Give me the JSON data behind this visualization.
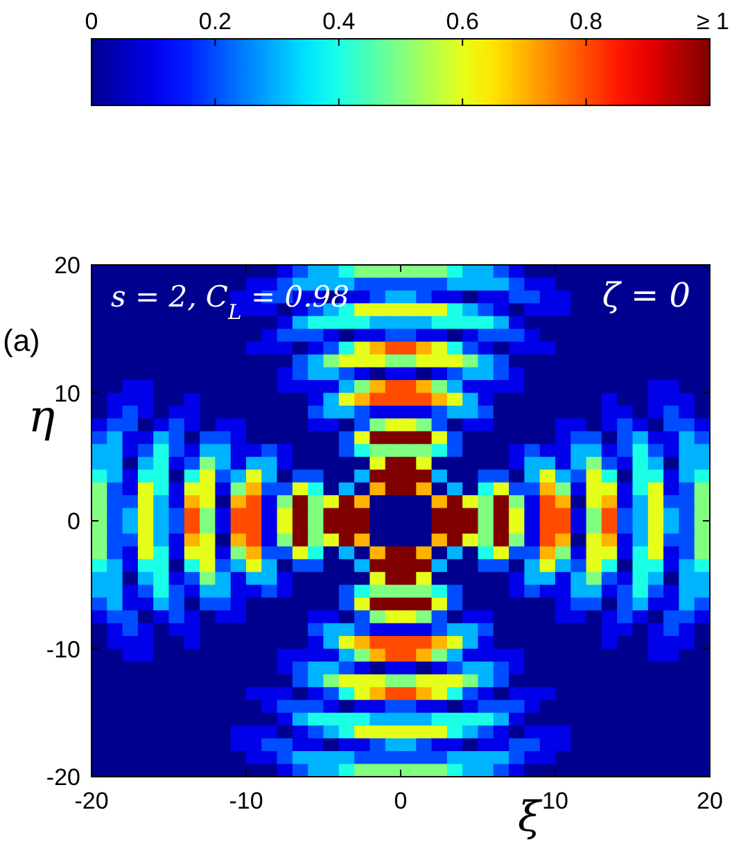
{
  "chart_data": {
    "type": "heatmap",
    "xlabel": "ξ",
    "ylabel": "η",
    "annotations": [
      "s = 2, C$_{L}$ = 0.98",
      "ζ = 0",
      "(a)"
    ],
    "xlim": [
      -20,
      20
    ],
    "ylim": [
      -20,
      20
    ],
    "xticks": [
      -20,
      -10,
      0,
      10,
      20
    ],
    "yticks": [
      -20,
      -10,
      0,
      10,
      20
    ],
    "clim": [
      0,
      1
    ],
    "cticks": [
      0,
      0.2,
      0.4,
      0.6,
      0.8,
      {
        "value": 1,
        "label": "≥ 1"
      }
    ],
    "cells": [
      [
        0,
        0,
        0,
        0,
        0,
        0,
        0,
        0,
        0,
        0,
        0,
        0,
        0.1,
        0.2,
        0.3,
        0.3,
        0.4,
        0.5,
        0.5,
        0.5,
        0.5,
        0.5,
        0.5,
        0.4,
        0.3,
        0.3,
        0.2,
        0.1,
        0,
        0,
        0,
        0,
        0,
        0,
        0,
        0,
        0,
        0,
        0,
        0
      ],
      [
        0,
        0,
        0,
        0,
        0,
        0,
        0,
        0,
        0,
        0,
        0.1,
        0.1,
        0.2,
        0.3,
        0.3,
        0.3,
        0.3,
        0.2,
        0.2,
        0.2,
        0.2,
        0.2,
        0.2,
        0.3,
        0.3,
        0.3,
        0.3,
        0.2,
        0.1,
        0.1,
        0,
        0,
        0,
        0,
        0,
        0,
        0,
        0,
        0,
        0
      ],
      [
        0,
        0,
        0,
        0,
        0,
        0,
        0,
        0,
        0,
        0.1,
        0.1,
        0.2,
        0.2,
        0.1,
        0.1,
        0,
        0.1,
        0.1,
        0.2,
        0.3,
        0.3,
        0.2,
        0.1,
        0.1,
        0,
        0.1,
        0.1,
        0.2,
        0.2,
        0.1,
        0.1,
        0,
        0,
        0,
        0,
        0,
        0,
        0,
        0,
        0
      ],
      [
        0,
        0,
        0,
        0,
        0,
        0,
        0,
        0,
        0,
        0.1,
        0.1,
        0.1,
        0,
        0.1,
        0.2,
        0.3,
        0.4,
        0.6,
        0.6,
        0.6,
        0.6,
        0.6,
        0.6,
        0.4,
        0.3,
        0.2,
        0.1,
        0,
        0.1,
        0.1,
        0.1,
        0,
        0,
        0,
        0,
        0,
        0,
        0,
        0,
        0
      ],
      [
        0,
        0,
        0,
        0,
        0,
        0,
        0,
        0,
        0,
        0,
        0,
        0,
        0.1,
        0.3,
        0.4,
        0.4,
        0.4,
        0.4,
        0.3,
        0.3,
        0.3,
        0.3,
        0.4,
        0.4,
        0.4,
        0.4,
        0.3,
        0.1,
        0,
        0,
        0,
        0,
        0,
        0,
        0,
        0,
        0,
        0,
        0,
        0
      ],
      [
        0,
        0,
        0,
        0,
        0,
        0,
        0,
        0,
        0,
        0,
        0,
        0.1,
        0.2,
        0.2,
        0.2,
        0.1,
        0,
        0.1,
        0.1,
        0.2,
        0.2,
        0.1,
        0.1,
        0,
        0.1,
        0.2,
        0.2,
        0.2,
        0.1,
        0,
        0,
        0,
        0,
        0,
        0,
        0,
        0,
        0,
        0,
        0
      ],
      [
        0,
        0,
        0,
        0,
        0,
        0,
        0,
        0,
        0,
        0,
        0.1,
        0.1,
        0.1,
        0,
        0.1,
        0.2,
        0.4,
        0.6,
        0.7,
        0.8,
        0.8,
        0.7,
        0.6,
        0.4,
        0.2,
        0.1,
        0,
        0.1,
        0.1,
        0.1,
        0,
        0,
        0,
        0,
        0,
        0,
        0,
        0,
        0,
        0
      ],
      [
        0,
        0,
        0,
        0,
        0,
        0,
        0,
        0,
        0,
        0,
        0,
        0,
        0,
        0.2,
        0.3,
        0.5,
        0.6,
        0.6,
        0.6,
        0.5,
        0.5,
        0.6,
        0.6,
        0.6,
        0.5,
        0.3,
        0.2,
        0,
        0,
        0,
        0,
        0,
        0,
        0,
        0,
        0,
        0,
        0,
        0,
        0
      ],
      [
        0,
        0,
        0,
        0,
        0,
        0,
        0,
        0,
        0,
        0,
        0,
        0,
        0.1,
        0.2,
        0.3,
        0.3,
        0.2,
        0.1,
        0,
        0.1,
        0.1,
        0,
        0.1,
        0.2,
        0.3,
        0.3,
        0.2,
        0.1,
        0,
        0,
        0,
        0,
        0,
        0,
        0,
        0,
        0,
        0,
        0,
        0
      ],
      [
        0,
        0,
        0.1,
        0.1,
        0,
        0,
        0,
        0,
        0,
        0,
        0,
        0,
        0.1,
        0.1,
        0.1,
        0.1,
        0.3,
        0.5,
        0.7,
        0.8,
        0.8,
        0.7,
        0.5,
        0.3,
        0.1,
        0.1,
        0.1,
        0.1,
        0,
        0,
        0,
        0,
        0,
        0,
        0,
        0,
        0.1,
        0.1,
        0,
        0
      ],
      [
        0,
        0.1,
        0.1,
        0.1,
        0,
        0,
        0.1,
        0,
        0,
        0,
        0,
        0,
        0,
        0,
        0.1,
        0.3,
        0.6,
        0.7,
        0.8,
        0.8,
        0.8,
        0.8,
        0.7,
        0.6,
        0.3,
        0.1,
        0,
        0,
        0,
        0,
        0,
        0,
        0,
        0.1,
        0,
        0,
        0.1,
        0.1,
        0.1,
        0
      ],
      [
        0,
        0.1,
        0.2,
        0.1,
        0,
        0.1,
        0.1,
        0,
        0,
        0,
        0,
        0,
        0,
        0,
        0.2,
        0.3,
        0.3,
        0.2,
        0.1,
        0.1,
        0.1,
        0.1,
        0.2,
        0.3,
        0.3,
        0.2,
        0,
        0,
        0,
        0,
        0,
        0,
        0,
        0.1,
        0.1,
        0,
        0.1,
        0.2,
        0.1,
        0
      ],
      [
        0.1,
        0.2,
        0.2,
        0,
        0.1,
        0.2,
        0.1,
        0,
        0.1,
        0.1,
        0,
        0,
        0,
        0,
        0.1,
        0.1,
        0,
        0.2,
        0.5,
        0.6,
        0.6,
        0.5,
        0.2,
        0,
        0.1,
        0.1,
        0,
        0,
        0,
        0,
        0.1,
        0.1,
        0,
        0.1,
        0.2,
        0.1,
        0,
        0.2,
        0.2,
        0.1
      ],
      [
        0.2,
        0.3,
        0.1,
        0.1,
        0.3,
        0.2,
        0,
        0.2,
        0.2,
        0.1,
        0,
        0,
        0,
        0,
        0,
        0,
        0.2,
        0.6,
        1,
        1,
        1,
        1,
        0.6,
        0.2,
        0,
        0,
        0,
        0,
        0,
        0,
        0.1,
        0.2,
        0.2,
        0,
        0.2,
        0.3,
        0.1,
        0.1,
        0.3,
        0.2
      ],
      [
        0.3,
        0.3,
        0.1,
        0.2,
        0.4,
        0.2,
        0.1,
        0.3,
        0.3,
        0.1,
        0.1,
        0.2,
        0.1,
        0,
        0,
        0,
        0.2,
        0.4,
        0.5,
        0.5,
        0.5,
        0.5,
        0.4,
        0.2,
        0,
        0,
        0,
        0.1,
        0.2,
        0.1,
        0.1,
        0.3,
        0.3,
        0.1,
        0.2,
        0.4,
        0.2,
        0.1,
        0.3,
        0.3
      ],
      [
        0.3,
        0.3,
        0,
        0.3,
        0.4,
        0.1,
        0.2,
        0.5,
        0.3,
        0.1,
        0.3,
        0.3,
        0.1,
        0,
        0,
        0,
        0,
        0,
        0.6,
        1,
        1,
        0.6,
        0,
        0,
        0,
        0,
        0,
        0.1,
        0.3,
        0.3,
        0.1,
        0.3,
        0.5,
        0.2,
        0.1,
        0.4,
        0.3,
        0,
        0.3,
        0.3
      ],
      [
        0.4,
        0.3,
        0.1,
        0.4,
        0.4,
        0,
        0.4,
        0.6,
        0.2,
        0.3,
        0.6,
        0.3,
        0,
        0.2,
        0.2,
        0,
        0,
        0.3,
        1,
        1,
        1,
        1,
        0.3,
        0,
        0,
        0.2,
        0.2,
        0,
        0.3,
        0.6,
        0.3,
        0.2,
        0.6,
        0.4,
        0,
        0.4,
        0.4,
        0.1,
        0.3,
        0.4
      ],
      [
        0.5,
        0.2,
        0.1,
        0.6,
        0.4,
        0.1,
        0.6,
        0.6,
        0.1,
        0.5,
        0.7,
        0.2,
        0.2,
        0.6,
        0.4,
        0,
        0.3,
        0,
        0.7,
        1,
        1,
        0.7,
        0,
        0.3,
        0,
        0.4,
        0.6,
        0.2,
        0.2,
        0.7,
        0.5,
        0.1,
        0.6,
        0.6,
        0.1,
        0.4,
        0.6,
        0.1,
        0.2,
        0.5
      ],
      [
        0.5,
        0.2,
        0.2,
        0.6,
        0.3,
        0.1,
        0.7,
        0.6,
        0,
        0.7,
        0.8,
        0.1,
        0.5,
        1,
        0.5,
        0.6,
        1,
        0.7,
        0,
        0,
        0,
        0,
        0.7,
        1,
        0.6,
        0.5,
        1,
        0.5,
        0.1,
        0.8,
        0.7,
        0,
        0.6,
        0.7,
        0.1,
        0.3,
        0.6,
        0.2,
        0.2,
        0.5
      ],
      [
        0.5,
        0.2,
        0.3,
        0.6,
        0.3,
        0.2,
        0.8,
        0.5,
        0.1,
        0.8,
        0.8,
        0.1,
        0.6,
        1,
        0.5,
        1,
        1,
        1,
        0,
        0,
        0,
        0,
        1,
        1,
        1,
        0.5,
        1,
        0.6,
        0.1,
        0.8,
        0.8,
        0.1,
        0.5,
        0.8,
        0.2,
        0.3,
        0.6,
        0.3,
        0.2,
        0.5
      ],
      [
        0.5,
        0.2,
        0.3,
        0.6,
        0.3,
        0.2,
        0.8,
        0.5,
        0.1,
        0.8,
        0.8,
        0.1,
        0.6,
        1,
        0.5,
        1,
        1,
        1,
        0,
        0,
        0,
        0,
        1,
        1,
        1,
        0.5,
        1,
        0.6,
        0.1,
        0.8,
        0.8,
        0.1,
        0.5,
        0.8,
        0.2,
        0.3,
        0.6,
        0.3,
        0.2,
        0.5
      ],
      [
        0.5,
        0.2,
        0.2,
        0.6,
        0.3,
        0.1,
        0.7,
        0.6,
        0,
        0.7,
        0.8,
        0.1,
        0.5,
        1,
        0.5,
        0.6,
        1,
        0.7,
        0,
        0,
        0,
        0,
        0.7,
        1,
        0.6,
        0.5,
        1,
        0.5,
        0.1,
        0.8,
        0.7,
        0,
        0.6,
        0.7,
        0.1,
        0.3,
        0.6,
        0.2,
        0.2,
        0.5
      ],
      [
        0.5,
        0.2,
        0.1,
        0.6,
        0.4,
        0.1,
        0.6,
        0.6,
        0.1,
        0.5,
        0.7,
        0.2,
        0.2,
        0.6,
        0.4,
        0,
        0.3,
        0,
        0.7,
        1,
        1,
        0.7,
        0,
        0.3,
        0,
        0.4,
        0.6,
        0.2,
        0.2,
        0.7,
        0.5,
        0.1,
        0.6,
        0.6,
        0.1,
        0.4,
        0.6,
        0.1,
        0.2,
        0.5
      ],
      [
        0.4,
        0.3,
        0.1,
        0.4,
        0.4,
        0,
        0.4,
        0.6,
        0.2,
        0.3,
        0.6,
        0.3,
        0,
        0.2,
        0.2,
        0,
        0,
        0.3,
        1,
        1,
        1,
        1,
        0.3,
        0,
        0,
        0.2,
        0.2,
        0,
        0.3,
        0.6,
        0.3,
        0.2,
        0.6,
        0.4,
        0,
        0.4,
        0.4,
        0.1,
        0.3,
        0.4
      ],
      [
        0.3,
        0.3,
        0,
        0.3,
        0.4,
        0.1,
        0.2,
        0.5,
        0.3,
        0.1,
        0.3,
        0.3,
        0.1,
        0,
        0,
        0,
        0,
        0,
        0.6,
        1,
        1,
        0.6,
        0,
        0,
        0,
        0,
        0,
        0.1,
        0.3,
        0.3,
        0.1,
        0.3,
        0.5,
        0.2,
        0.1,
        0.4,
        0.3,
        0,
        0.3,
        0.3
      ],
      [
        0.3,
        0.3,
        0.1,
        0.2,
        0.4,
        0.2,
        0.1,
        0.3,
        0.3,
        0.1,
        0.1,
        0.2,
        0.1,
        0,
        0,
        0,
        0.2,
        0.4,
        0.5,
        0.5,
        0.5,
        0.5,
        0.4,
        0.2,
        0,
        0,
        0,
        0.1,
        0.2,
        0.1,
        0.1,
        0.3,
        0.3,
        0.1,
        0.2,
        0.4,
        0.2,
        0.1,
        0.3,
        0.3
      ],
      [
        0.2,
        0.3,
        0.1,
        0.1,
        0.3,
        0.2,
        0,
        0.2,
        0.2,
        0.1,
        0,
        0,
        0,
        0,
        0,
        0,
        0.2,
        0.6,
        1,
        1,
        1,
        1,
        0.6,
        0.2,
        0,
        0,
        0,
        0,
        0,
        0,
        0.1,
        0.2,
        0.2,
        0,
        0.2,
        0.3,
        0.1,
        0.1,
        0.3,
        0.2
      ],
      [
        0.1,
        0.2,
        0.2,
        0,
        0.1,
        0.2,
        0.1,
        0,
        0.1,
        0.1,
        0,
        0,
        0,
        0,
        0.1,
        0.1,
        0,
        0.2,
        0.5,
        0.6,
        0.6,
        0.5,
        0.2,
        0,
        0.1,
        0.1,
        0,
        0,
        0,
        0,
        0.1,
        0.1,
        0,
        0.1,
        0.2,
        0.1,
        0,
        0.2,
        0.2,
        0.1
      ],
      [
        0,
        0.1,
        0.2,
        0.1,
        0,
        0.1,
        0.1,
        0,
        0,
        0,
        0,
        0,
        0,
        0,
        0.2,
        0.3,
        0.3,
        0.2,
        0.1,
        0.1,
        0.1,
        0.1,
        0.2,
        0.3,
        0.3,
        0.2,
        0,
        0,
        0,
        0,
        0,
        0,
        0,
        0.1,
        0.1,
        0,
        0.1,
        0.2,
        0.1,
        0
      ],
      [
        0,
        0.1,
        0.1,
        0.1,
        0,
        0,
        0.1,
        0,
        0,
        0,
        0,
        0,
        0,
        0,
        0.1,
        0.3,
        0.6,
        0.7,
        0.8,
        0.8,
        0.8,
        0.8,
        0.7,
        0.6,
        0.3,
        0.1,
        0,
        0,
        0,
        0,
        0,
        0,
        0,
        0.1,
        0,
        0,
        0.1,
        0.1,
        0.1,
        0
      ],
      [
        0,
        0,
        0.1,
        0.1,
        0,
        0,
        0,
        0,
        0,
        0,
        0,
        0,
        0.1,
        0.1,
        0.1,
        0.1,
        0.3,
        0.5,
        0.7,
        0.8,
        0.8,
        0.7,
        0.5,
        0.3,
        0.1,
        0.1,
        0.1,
        0.1,
        0,
        0,
        0,
        0,
        0,
        0,
        0,
        0,
        0.1,
        0.1,
        0,
        0
      ],
      [
        0,
        0,
        0,
        0,
        0,
        0,
        0,
        0,
        0,
        0,
        0,
        0,
        0.1,
        0.2,
        0.3,
        0.3,
        0.2,
        0.1,
        0,
        0.1,
        0.1,
        0,
        0.1,
        0.2,
        0.3,
        0.3,
        0.2,
        0.1,
        0,
        0,
        0,
        0,
        0,
        0,
        0,
        0,
        0,
        0,
        0,
        0
      ],
      [
        0,
        0,
        0,
        0,
        0,
        0,
        0,
        0,
        0,
        0,
        0,
        0,
        0,
        0.2,
        0.3,
        0.5,
        0.6,
        0.6,
        0.6,
        0.5,
        0.5,
        0.6,
        0.6,
        0.6,
        0.5,
        0.3,
        0.2,
        0,
        0,
        0,
        0,
        0,
        0,
        0,
        0,
        0,
        0,
        0,
        0,
        0
      ],
      [
        0,
        0,
        0,
        0,
        0,
        0,
        0,
        0,
        0,
        0,
        0.1,
        0.1,
        0.1,
        0,
        0.1,
        0.2,
        0.4,
        0.6,
        0.7,
        0.8,
        0.8,
        0.7,
        0.6,
        0.4,
        0.2,
        0.1,
        0,
        0.1,
        0.1,
        0.1,
        0,
        0,
        0,
        0,
        0,
        0,
        0,
        0,
        0,
        0
      ],
      [
        0,
        0,
        0,
        0,
        0,
        0,
        0,
        0,
        0,
        0,
        0,
        0.1,
        0.2,
        0.2,
        0.2,
        0.1,
        0,
        0.1,
        0.1,
        0.2,
        0.2,
        0.1,
        0.1,
        0,
        0.1,
        0.2,
        0.2,
        0.2,
        0.1,
        0,
        0,
        0,
        0,
        0,
        0,
        0,
        0,
        0,
        0,
        0
      ],
      [
        0,
        0,
        0,
        0,
        0,
        0,
        0,
        0,
        0,
        0,
        0,
        0,
        0.1,
        0.3,
        0.4,
        0.4,
        0.4,
        0.4,
        0.3,
        0.3,
        0.3,
        0.3,
        0.4,
        0.4,
        0.4,
        0.4,
        0.3,
        0.1,
        0,
        0,
        0,
        0,
        0,
        0,
        0,
        0,
        0,
        0,
        0,
        0
      ],
      [
        0,
        0,
        0,
        0,
        0,
        0,
        0,
        0,
        0,
        0.1,
        0.1,
        0.1,
        0,
        0.1,
        0.2,
        0.3,
        0.4,
        0.6,
        0.6,
        0.6,
        0.6,
        0.6,
        0.6,
        0.4,
        0.3,
        0.2,
        0.1,
        0,
        0.1,
        0.1,
        0.1,
        0,
        0,
        0,
        0,
        0,
        0,
        0,
        0,
        0
      ],
      [
        0,
        0,
        0,
        0,
        0,
        0,
        0,
        0,
        0,
        0.1,
        0.1,
        0.2,
        0.2,
        0.1,
        0.1,
        0,
        0.1,
        0.1,
        0.2,
        0.3,
        0.3,
        0.2,
        0.1,
        0.1,
        0,
        0.1,
        0.1,
        0.2,
        0.2,
        0.1,
        0.1,
        0,
        0,
        0,
        0,
        0,
        0,
        0,
        0,
        0
      ],
      [
        0,
        0,
        0,
        0,
        0,
        0,
        0,
        0,
        0,
        0,
        0.1,
        0.1,
        0.2,
        0.3,
        0.3,
        0.3,
        0.3,
        0.2,
        0.2,
        0.2,
        0.2,
        0.2,
        0.2,
        0.3,
        0.3,
        0.3,
        0.3,
        0.2,
        0.1,
        0.1,
        0,
        0,
        0,
        0,
        0,
        0,
        0,
        0,
        0,
        0
      ],
      [
        0,
        0,
        0,
        0,
        0,
        0,
        0,
        0,
        0,
        0,
        0,
        0,
        0.1,
        0.2,
        0.3,
        0.3,
        0.4,
        0.5,
        0.5,
        0.5,
        0.5,
        0.5,
        0.5,
        0.4,
        0.3,
        0.3,
        0.2,
        0.1,
        0,
        0,
        0,
        0,
        0,
        0,
        0,
        0,
        0,
        0,
        0,
        0
      ]
    ]
  }
}
